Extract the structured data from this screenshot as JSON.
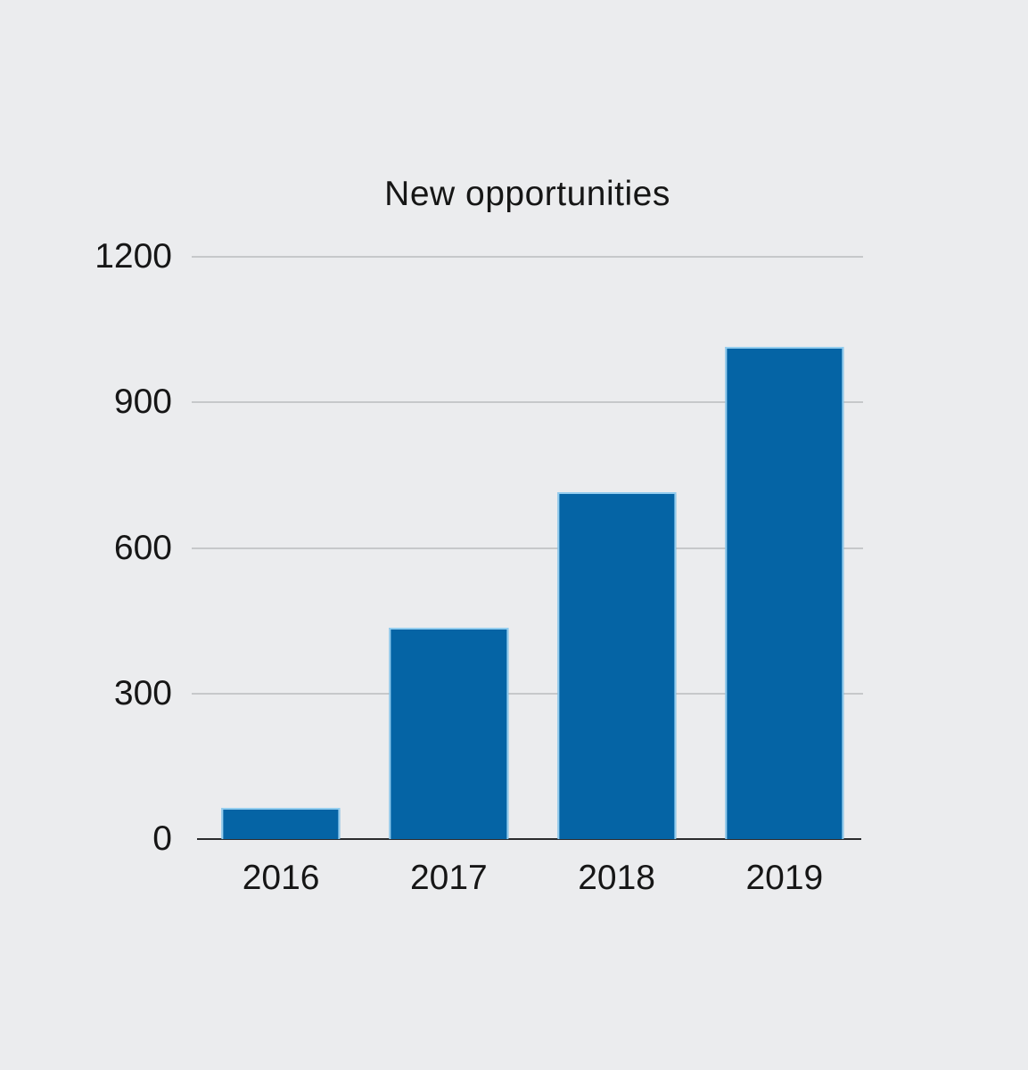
{
  "chart_data": {
    "type": "bar",
    "title": "New opportunities",
    "categories": [
      "2016",
      "2017",
      "2018",
      "2019"
    ],
    "values": [
      65,
      435,
      715,
      1015
    ],
    "xlabel": "",
    "ylabel": "",
    "ylim": [
      0,
      1200
    ],
    "yticks": [
      0,
      300,
      600,
      900,
      1200
    ],
    "grid": true,
    "legend_position": "none",
    "colors": {
      "background": "#ebecee",
      "bar_fill": "#0564a5",
      "bar_stroke": "#93cdef",
      "gridline": "#c6c8ca",
      "axis_line": "#2a2b2d",
      "text": "#161616"
    }
  }
}
